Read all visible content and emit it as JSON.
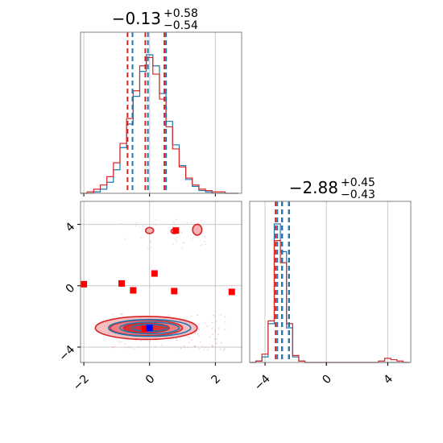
{
  "chart_data": {
    "type": "corner",
    "colors": {
      "series_a": "#1f77b4",
      "series_b": "#d62728",
      "marker_red": "#ff0000",
      "marker_blue": "#0000ff",
      "frame": "#808080",
      "grid": "#c8c8c8"
    },
    "params": [
      {
        "title_main": "−0.13",
        "title_sup": "+0.58",
        "title_sub": "−0.54",
        "range": [
          -2.1,
          2.8
        ],
        "ticks": [
          -2,
          0,
          2
        ],
        "tick_labels": [
          "−2",
          "0",
          "2"
        ],
        "grid": true
      },
      {
        "title_main": "−2.88",
        "title_sup": "+0.45",
        "title_sub": "−0.43",
        "range": [
          -5.0,
          5.5
        ],
        "ticks": [
          -4,
          0,
          4
        ],
        "tick_labels": [
          "−4",
          "0",
          "4"
        ],
        "grid": true
      }
    ],
    "hist1": {
      "bins": [
        -2.1,
        -1.9,
        -1.7,
        -1.5,
        -1.3,
        -1.1,
        -0.9,
        -0.7,
        -0.5,
        -0.3,
        -0.1,
        0.1,
        0.3,
        0.5,
        0.7,
        0.9,
        1.1,
        1.3,
        1.5,
        1.7,
        1.9,
        2.1,
        2.3,
        2.5,
        2.7
      ],
      "series": [
        {
          "name": "",
          "color_key": "series_a",
          "counts": [
            0,
            0,
            1,
            3,
            8,
            17,
            33,
            50,
            70,
            88,
            100,
            92,
            72,
            52,
            35,
            20,
            10,
            5,
            2,
            1,
            0,
            0,
            0,
            0
          ]
        },
        {
          "name": "",
          "color_key": "series_b",
          "counts": [
            0,
            1,
            3,
            6,
            12,
            22,
            36,
            54,
            74,
            92,
            98,
            86,
            68,
            48,
            32,
            19,
            11,
            6,
            3,
            2,
            1,
            1,
            0,
            0
          ]
        }
      ],
      "quantile_lines": [
        {
          "color_key": "series_b",
          "x": [
            -0.67,
            -0.13,
            0.45
          ]
        },
        {
          "color_key": "series_a",
          "x": [
            -0.52,
            -0.05,
            0.5
          ]
        }
      ]
    },
    "hist2": {
      "bins": [
        -5.0,
        -4.6,
        -4.2,
        -3.8,
        -3.4,
        -3.0,
        -2.6,
        -2.2,
        -1.8,
        -1.4,
        -1.0,
        -0.6,
        -0.2,
        0.2,
        0.6,
        1.0,
        1.4,
        1.8,
        2.2,
        2.6,
        3.0,
        3.4,
        3.8,
        4.2,
        4.6,
        5.0,
        5.4
      ],
      "series": [
        {
          "name": "",
          "color_key": "series_a",
          "counts": [
            0,
            1,
            4,
            28,
            100,
            80,
            25,
            4,
            1,
            0,
            0,
            0,
            0,
            0,
            0,
            0,
            0,
            0,
            0,
            0,
            0,
            0,
            0,
            0,
            0,
            0
          ]
        },
        {
          "name": "",
          "color_key": "series_b",
          "counts": [
            0,
            1,
            6,
            30,
            88,
            72,
            28,
            5,
            1,
            0,
            0,
            0,
            0,
            0,
            0,
            0,
            0,
            0,
            0,
            0,
            0,
            1,
            3,
            2,
            1,
            0
          ]
        }
      ],
      "quantile_lines": [
        {
          "color_key": "series_b",
          "x": [
            -3.31,
            -2.88,
            -2.43
          ]
        },
        {
          "color_key": "series_a",
          "x": [
            -3.2,
            -2.9,
            -2.45
          ]
        }
      ]
    },
    "scatter": {
      "density_a": {
        "color_key": "series_a",
        "center": [
          0.0,
          -2.75
        ],
        "contour_radii": [
          [
            1.25,
            0.55
          ],
          [
            0.9,
            0.38
          ],
          [
            0.55,
            0.22
          ]
        ]
      },
      "density_b": {
        "color_key": "series_b",
        "center": [
          -0.1,
          -2.75
        ],
        "contour_radii": [
          [
            1.55,
            0.75
          ],
          [
            1.1,
            0.5
          ],
          [
            0.7,
            0.3
          ]
        ]
      },
      "islands": [
        {
          "center": [
            0.0,
            3.6
          ],
          "radii": [
            0.12,
            0.2
          ]
        },
        {
          "center": [
            1.45,
            3.65
          ],
          "radii": [
            0.14,
            0.35
          ]
        },
        {
          "center": [
            0.75,
            3.55
          ],
          "radii": [
            0.1,
            0.15
          ]
        }
      ],
      "red_squares": [
        {
          "x": -2.0,
          "y": 0.1
        },
        {
          "x": -0.85,
          "y": 0.15
        },
        {
          "x": -0.5,
          "y": -0.3
        },
        {
          "x": 0.15,
          "y": 0.8
        },
        {
          "x": 0.75,
          "y": -0.35
        },
        {
          "x": 0.8,
          "y": 3.6
        },
        {
          "x": 2.5,
          "y": -0.4
        },
        {
          "x": -0.15,
          "y": -2.8
        }
      ],
      "blue_squares": [
        {
          "x": 0.0,
          "y": -2.75
        }
      ]
    }
  }
}
